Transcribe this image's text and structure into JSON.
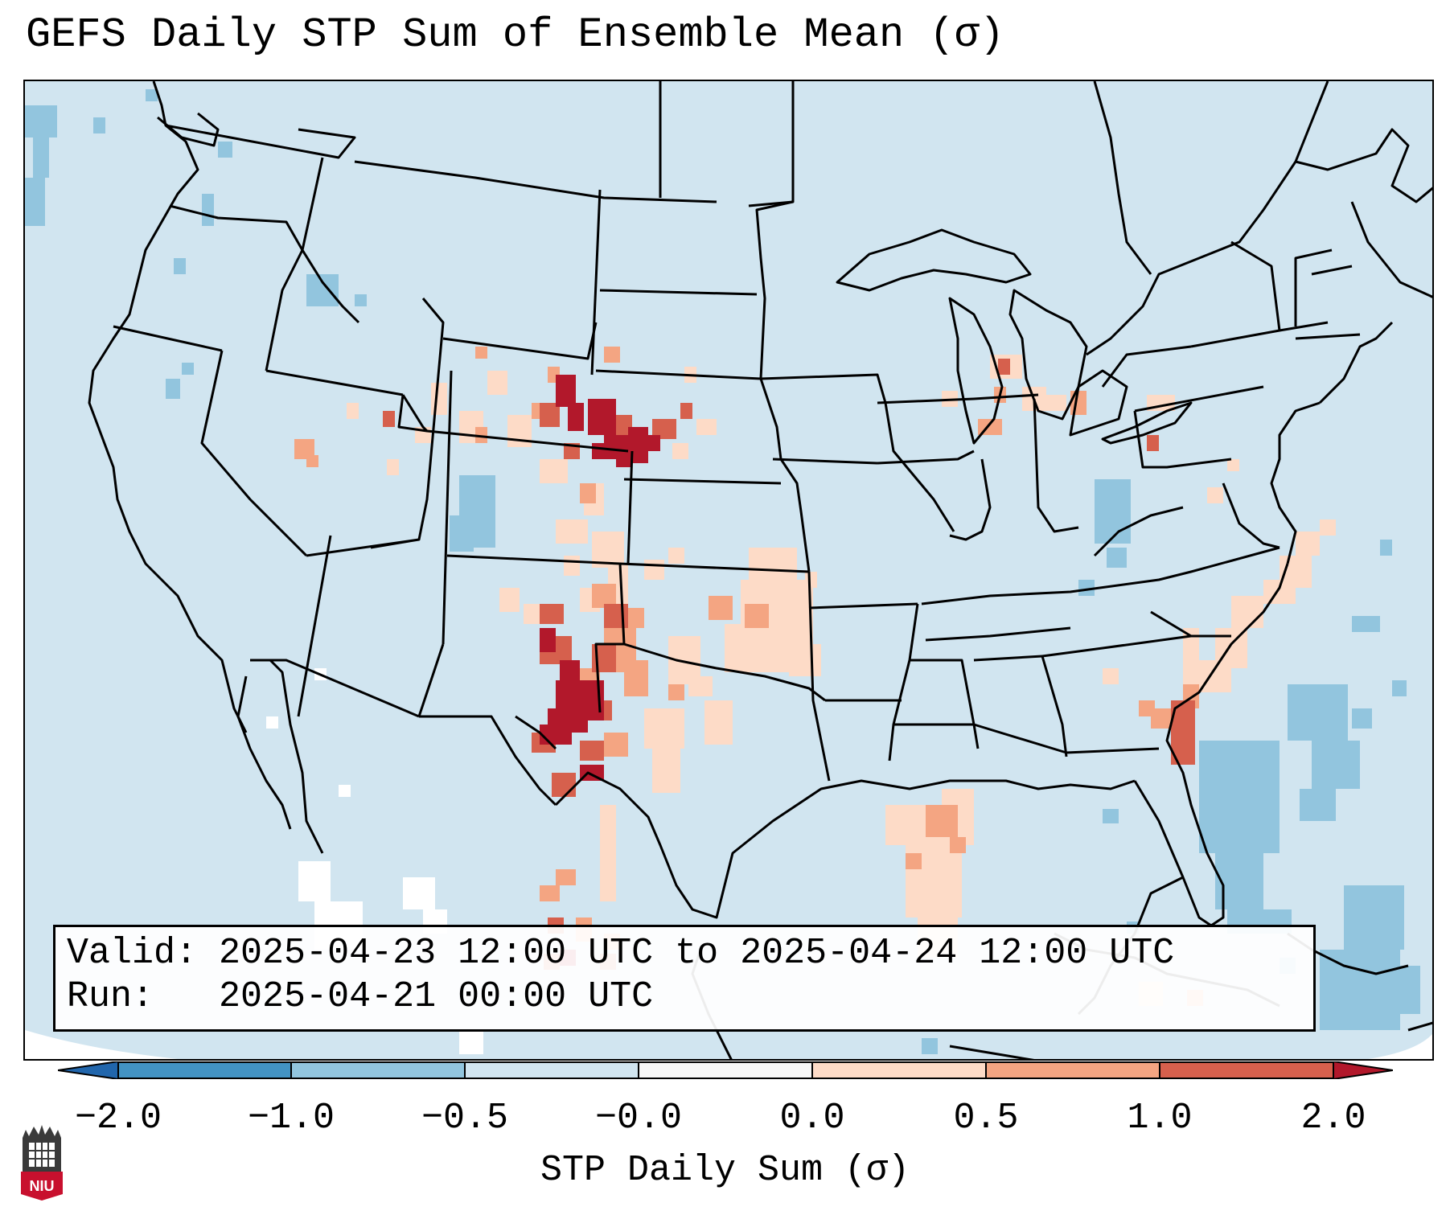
{
  "title": "GEFS Daily STP Sum of Ensemble Mean (σ)",
  "valid_line": {
    "label": "Valid:",
    "value": "2025-04-23 12:00 UTC to 2025-04-24 12:00 UTC"
  },
  "run_line": {
    "label": "Run:",
    "value": "2025-04-21 00:00 UTC"
  },
  "colorbar": {
    "label": "STP Daily Sum (σ)",
    "ticks": [
      "−2.0",
      "−1.0",
      "−0.5",
      "−0.0",
      "0.0",
      "0.5",
      "1.0",
      "2.0"
    ],
    "bins": [
      {
        "range": "<-2.0",
        "color": "#2166ac"
      },
      {
        "range": "-2.0 to -1.0",
        "color": "#4393c3"
      },
      {
        "range": "-1.0 to -0.5",
        "color": "#92c5de"
      },
      {
        "range": "-0.5 to -0.0",
        "color": "#d1e5f0"
      },
      {
        "range": "-0.0 to 0.0",
        "color": "#f7f7f7"
      },
      {
        "range": "0.0 to 0.5",
        "color": "#fddbc7"
      },
      {
        "range": "0.5 to 1.0",
        "color": "#f4a582"
      },
      {
        "range": "1.0 to 2.0",
        "color": "#d6604d"
      },
      {
        "range": ">2.0",
        "color": "#b2182b"
      }
    ]
  },
  "logo": {
    "text": "NIU",
    "color": "#c8102e"
  },
  "colors": {
    "background_field": "#d1e5f0",
    "weak_positive": "#fddbc7",
    "moderate_positive": "#f4a582",
    "strong_positive": "#d6604d",
    "extreme_positive": "#b2182b",
    "weak_negative": "#92c5de",
    "boundary": "#000000"
  }
}
